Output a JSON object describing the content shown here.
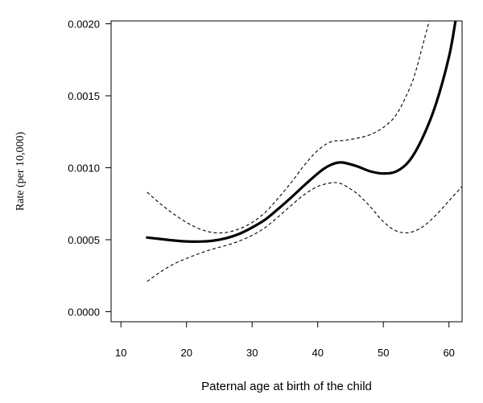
{
  "chart_data": {
    "type": "line",
    "title": "",
    "xlabel": "Paternal age at birth of the child",
    "ylabel": "Rate (per 10,000)",
    "xlim": [
      8.5,
      62
    ],
    "ylim": [
      -7e-05,
      0.00202
    ],
    "x_ticks": [
      10,
      20,
      30,
      40,
      50,
      60
    ],
    "y_ticks": [
      0.0,
      0.0005,
      0.001,
      0.0015,
      0.002
    ],
    "x_tick_labels": [
      "10",
      "20",
      "30",
      "40",
      "50",
      "60"
    ],
    "y_tick_labels": [
      "0.0000",
      "0.0005",
      "0.0010",
      "0.0015",
      "0.0020"
    ],
    "grid": false,
    "legend": "none",
    "series": [
      {
        "role": "estimate",
        "style": "solid-thick",
        "color": "#000000",
        "x": [
          14,
          16,
          18,
          20,
          22,
          24,
          26,
          28,
          30,
          32,
          34,
          36,
          38,
          40,
          41,
          42,
          43,
          44,
          46,
          48,
          50,
          52,
          54,
          56,
          58,
          60,
          61
        ],
        "y": [
          0.000515,
          0.000505,
          0.000495,
          0.000488,
          0.000487,
          0.000493,
          0.00051,
          0.00054,
          0.000585,
          0.00064,
          0.000715,
          0.000795,
          0.00088,
          0.00096,
          0.000995,
          0.00102,
          0.001035,
          0.001035,
          0.00101,
          0.000975,
          0.00096,
          0.000975,
          0.00105,
          0.00121,
          0.00144,
          0.00177,
          0.00202
        ]
      },
      {
        "role": "upper-ci",
        "style": "dashed",
        "color": "#000000",
        "x": [
          14,
          16,
          18,
          20,
          22,
          24,
          26,
          28,
          30,
          32,
          34,
          36,
          38,
          40,
          42,
          44,
          46,
          48,
          50,
          52,
          54,
          55,
          56,
          57
        ],
        "y": [
          0.00083,
          0.00075,
          0.00068,
          0.00062,
          0.000575,
          0.00055,
          0.00055,
          0.000575,
          0.00062,
          0.00069,
          0.00079,
          0.0009,
          0.00102,
          0.00112,
          0.00118,
          0.00119,
          0.001205,
          0.00123,
          0.00128,
          0.00137,
          0.00155,
          0.00168,
          0.00185,
          0.00202
        ]
      },
      {
        "role": "lower-ci",
        "style": "dashed",
        "color": "#000000",
        "x": [
          14,
          16,
          18,
          20,
          22,
          24,
          26,
          28,
          30,
          32,
          34,
          36,
          38,
          40,
          42,
          43,
          44,
          46,
          48,
          50,
          52,
          54,
          56,
          58,
          60,
          62
        ],
        "y": [
          0.00021,
          0.000275,
          0.00033,
          0.00037,
          0.000405,
          0.000435,
          0.00046,
          0.00049,
          0.00053,
          0.000585,
          0.00066,
          0.00074,
          0.000815,
          0.00087,
          0.000895,
          0.000895,
          0.00088,
          0.00082,
          0.00073,
          0.000625,
          0.00056,
          0.00055,
          0.00059,
          0.00067,
          0.00077,
          0.00087
        ]
      }
    ]
  }
}
